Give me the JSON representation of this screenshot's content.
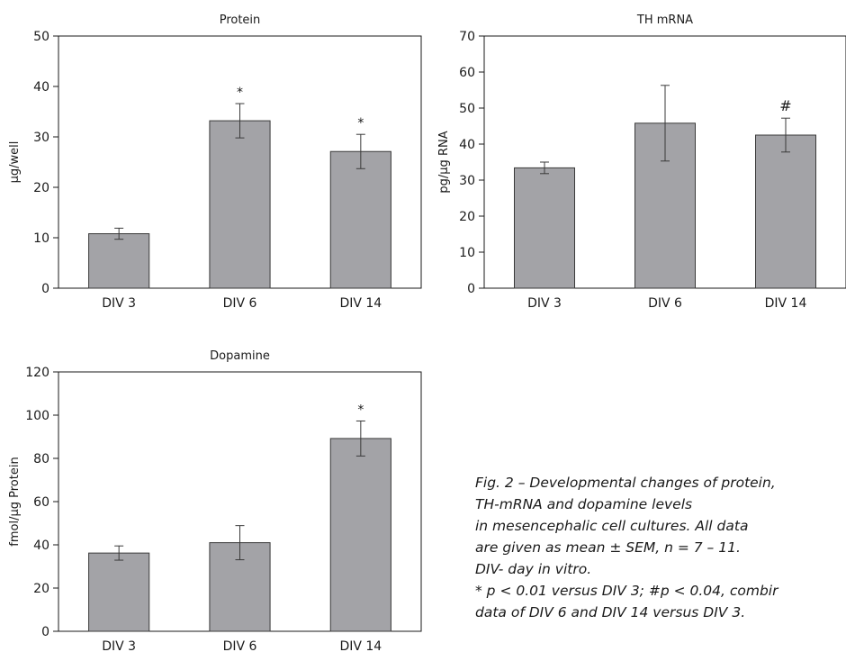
{
  "figure": {
    "caption_lines": [
      "Fig. 2 – Developmental changes of protein,",
      "TH-mRNA and dopamine levels",
      "in mesencephalic cell cultures. All data",
      "are given as mean ± SEM, n = 7 – 11.",
      "DIV- day in vitro.",
      "* p < 0.01 versus DIV 3; #p < 0.04, combir",
      "data of DIV 6 and DIV 14 versus DIV 3."
    ]
  },
  "colors": {
    "bar_fill": "#a3a3a7",
    "bar_stroke": "#3a3a3a",
    "axis": "#1a1a1a"
  },
  "chart_data": [
    {
      "type": "bar",
      "title": "Protein",
      "ylabel": "µg/well",
      "xlabel": "",
      "categories": [
        "DIV 3",
        "DIV 6",
        "DIV 14"
      ],
      "values": [
        10.8,
        33.2,
        27.1
      ],
      "errors": [
        1.1,
        3.4,
        3.4
      ],
      "annotations": [
        "",
        "*",
        "*"
      ],
      "ylim": [
        0,
        50
      ],
      "yticks": [
        0,
        10,
        20,
        30,
        40,
        50
      ],
      "grid": false
    },
    {
      "type": "bar",
      "title": "TH mRNA",
      "ylabel": "pg/µg RNA",
      "xlabel": "",
      "categories": [
        "DIV 3",
        "DIV 6",
        "DIV 14"
      ],
      "values": [
        33.4,
        45.8,
        42.5
      ],
      "errors": [
        1.6,
        10.5,
        4.7
      ],
      "annotations": [
        "",
        "",
        "#"
      ],
      "ylim": [
        0,
        70
      ],
      "yticks": [
        0,
        10,
        20,
        30,
        40,
        50,
        60,
        70
      ],
      "grid": false
    },
    {
      "type": "bar",
      "title": "Dopamine",
      "ylabel": "fmol/µg Protein",
      "xlabel": "",
      "categories": [
        "DIV 3",
        "DIV 6",
        "DIV 14"
      ],
      "values": [
        36.2,
        41.0,
        89.2
      ],
      "errors": [
        3.3,
        7.9,
        8.1
      ],
      "annotations": [
        "",
        "",
        "*"
      ],
      "ylim": [
        0,
        120
      ],
      "yticks": [
        0,
        20,
        40,
        60,
        80,
        100,
        120
      ],
      "grid": false
    }
  ]
}
